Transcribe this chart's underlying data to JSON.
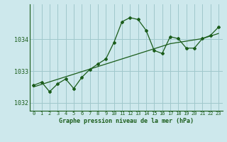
{
  "title": "Graphe pression niveau de la mer (hPa)",
  "background_color": "#cde8ec",
  "line_color": "#1a5c1a",
  "grid_color": "#a0c8cc",
  "x_values": [
    0,
    1,
    2,
    3,
    4,
    5,
    6,
    7,
    8,
    9,
    10,
    11,
    12,
    13,
    14,
    15,
    16,
    17,
    18,
    19,
    20,
    21,
    22,
    23
  ],
  "y_values": [
    1032.55,
    1032.65,
    1032.35,
    1032.6,
    1032.75,
    1032.45,
    1032.8,
    1033.05,
    1033.22,
    1033.38,
    1033.9,
    1034.55,
    1034.68,
    1034.62,
    1034.28,
    1033.65,
    1033.55,
    1034.08,
    1034.02,
    1033.72,
    1033.72,
    1034.02,
    1034.12,
    1034.38
  ],
  "y2_values": [
    1032.5,
    1032.58,
    1032.66,
    1032.74,
    1032.82,
    1032.9,
    1032.98,
    1033.06,
    1033.14,
    1033.22,
    1033.3,
    1033.38,
    1033.46,
    1033.54,
    1033.62,
    1033.7,
    1033.78,
    1033.86,
    1033.9,
    1033.94,
    1033.98,
    1034.02,
    1034.1,
    1034.18
  ],
  "xlim": [
    -0.5,
    23.5
  ],
  "ylim": [
    1031.75,
    1035.1
  ],
  "yticks": [
    1032,
    1033,
    1034
  ],
  "xticks": [
    0,
    1,
    2,
    3,
    4,
    5,
    6,
    7,
    8,
    9,
    10,
    11,
    12,
    13,
    14,
    15,
    16,
    17,
    18,
    19,
    20,
    21,
    22,
    23
  ],
  "xlabel_fontsize": 6.0,
  "ytick_fontsize": 6.0,
  "xtick_fontsize": 5.0
}
